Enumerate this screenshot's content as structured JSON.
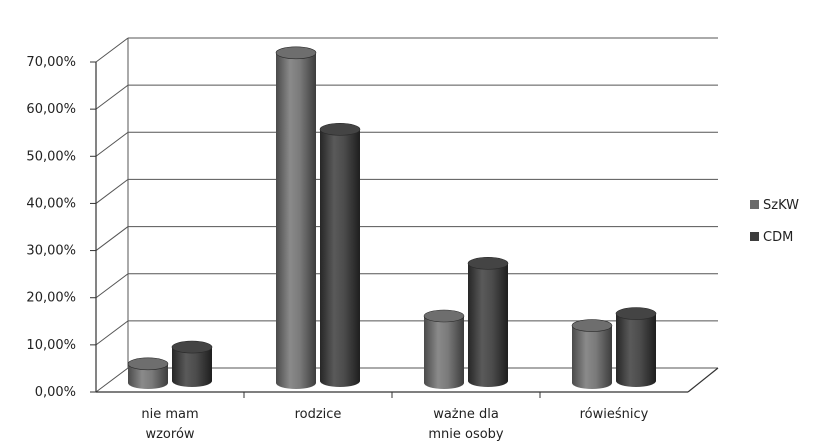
{
  "chart_data": {
    "type": "bar",
    "title": "",
    "xlabel": "",
    "ylabel": "",
    "categories": [
      [
        "nie mam",
        "wzorów"
      ],
      [
        "rodzice"
      ],
      [
        "ważne dla",
        "mnie osoby"
      ],
      [
        "rówieśnicy"
      ]
    ],
    "series": [
      {
        "name": "SzKW",
        "values": [
          0.04,
          0.69,
          0.14,
          0.12
        ],
        "color": "#6a6a6a"
      },
      {
        "name": "CDM",
        "values": [
          0.075,
          0.53,
          0.25,
          0.145
        ],
        "color": "#3d3d3d"
      }
    ],
    "yticks": [
      "0,00%",
      "10,00%",
      "20,00%",
      "30,00%",
      "40,00%",
      "50,00%",
      "60,00%",
      "70,00%"
    ],
    "ylim": [
      0,
      0.7
    ],
    "grid": true,
    "legend_position": "right",
    "style": "3d-cylinder"
  }
}
